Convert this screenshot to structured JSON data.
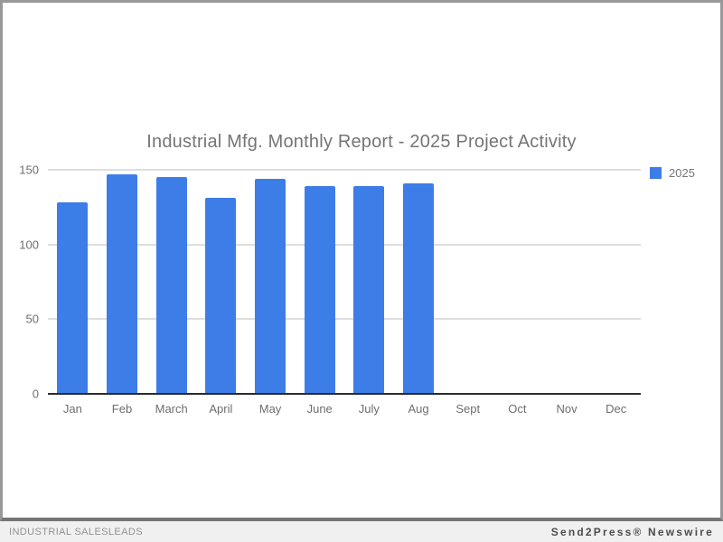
{
  "chart_data": {
    "type": "bar",
    "title": "Industrial Mfg. Monthly Report - 2025 Project Activity",
    "categories": [
      "Jan",
      "Feb",
      "March",
      "April",
      "May",
      "June",
      "July",
      "Aug",
      "Sept",
      "Oct",
      "Nov",
      "Dec"
    ],
    "series": [
      {
        "name": "2025",
        "color": "#3d7de8",
        "values": [
          128,
          147,
          145,
          131,
          144,
          139,
          139,
          141,
          null,
          null,
          null,
          null
        ]
      }
    ],
    "xlabel": "",
    "ylabel": "",
    "ylim": [
      0,
      150
    ],
    "y_ticks": [
      0,
      50,
      100,
      150
    ],
    "grid": true,
    "legend_position": "right"
  },
  "legend": {
    "label": "2025",
    "swatch_color": "#3d7de8"
  },
  "footer": {
    "left_text": "INDUSTRIAL SALESLEADS",
    "right_text": "Send2Press® Newswire"
  },
  "colors": {
    "bar": "#3d7de8",
    "title_text": "#757575",
    "axis_text": "#6e6e6e",
    "gridline": "#dedede",
    "axis_line": "#2b2b2b",
    "card_background": "#ffffff",
    "card_border": "#98989a",
    "page_background": "#f0f0f1"
  }
}
